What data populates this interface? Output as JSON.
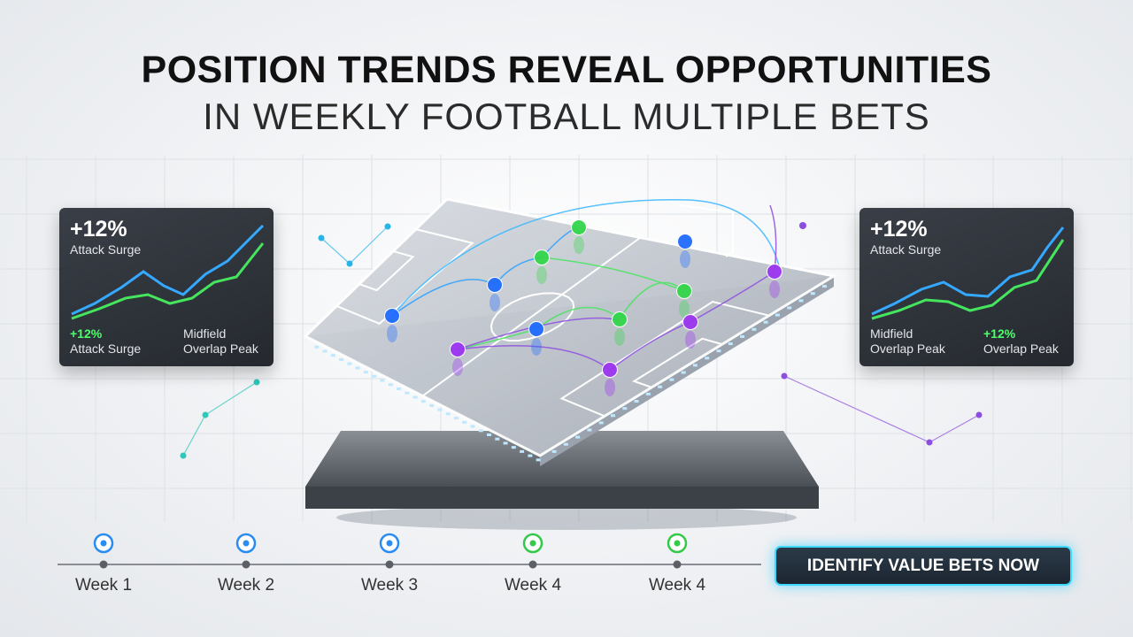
{
  "header": {
    "title": "POSITION TRENDS REVEAL OPPORTUNITIES",
    "subtitle": "IN WEEKLY FOOTBALL MULTIPLE BETS"
  },
  "cards": [
    {
      "headline": "+12%",
      "headline_label": "Attack Surge",
      "stats": [
        {
          "lines": [
            "+12%",
            "Attack Surge"
          ]
        },
        {
          "lines": [
            "Midfield",
            "Overlap Peak"
          ]
        }
      ]
    },
    {
      "headline": "+12%",
      "headline_label": "Attack Surge",
      "stats": [
        {
          "lines": [
            "Midfield",
            "Overlap Peak"
          ]
        },
        {
          "lines": [
            "+12%",
            "Overlap Peak"
          ]
        }
      ]
    }
  ],
  "timeline": {
    "weeks": [
      "Week 1",
      "Week 2",
      "Week 3",
      "Week 4",
      "Week 4"
    ]
  },
  "button": {
    "label": "IDENTIFY VALUE BETS NOW"
  }
}
